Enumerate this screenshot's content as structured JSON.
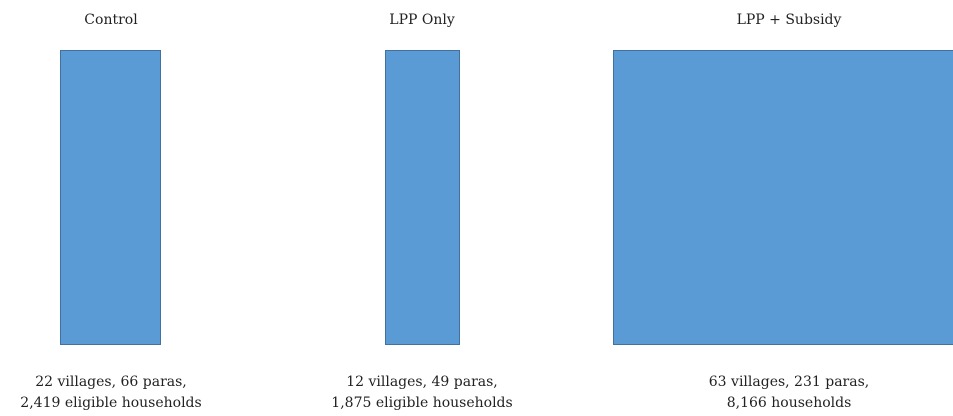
{
  "groups": [
    {
      "title": "Control",
      "caption_line1": "22 villages, 66 paras,",
      "caption_line2": "2,419 eligible households"
    },
    {
      "title": "LPP Only",
      "caption_line1": "12 villages, 49 paras,",
      "caption_line2": "1,875 eligible households"
    },
    {
      "title": "LPP + Subsidy",
      "caption_line1": "63 villages, 231 paras,",
      "caption_line2": "8,166 households"
    }
  ],
  "colors": {
    "box_fill": "#5b9bd5",
    "box_border": "#41719c"
  }
}
